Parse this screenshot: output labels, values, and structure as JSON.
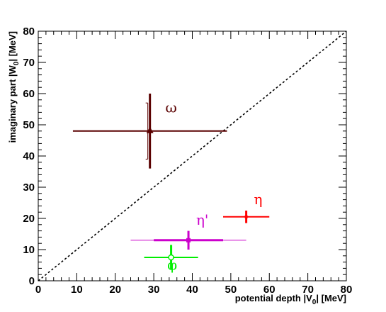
{
  "chart_data": {
    "type": "scatter",
    "xlabel": "potential depth |V",
    "xlabel_sub": "0",
    "xlabel_end": "| [MeV]",
    "ylabel": "imaginary part |W",
    "ylabel_sub": "0",
    "ylabel_end": "| [MeV]",
    "xlim": [
      0,
      80
    ],
    "ylim": [
      0,
      80
    ],
    "xticks": [
      "0",
      "10",
      "20",
      "30",
      "40",
      "50",
      "60",
      "70",
      "80"
    ],
    "yticks": [
      "0",
      "10",
      "20",
      "30",
      "40",
      "50",
      "60",
      "70",
      "80"
    ],
    "grid": false,
    "reference_line": {
      "style": "dashed",
      "from": [
        0,
        0
      ],
      "to": [
        80,
        80
      ]
    },
    "points": [
      {
        "name": "ω",
        "marker": "triangle",
        "color": "#5a0000",
        "x": 29,
        "y": 48,
        "xerr_lo": 20,
        "xerr_hi": 20,
        "yerr_lo": 12,
        "yerr_hi": 12,
        "yerr_inner": 9,
        "label_dx": 4,
        "label_dy": 6
      },
      {
        "name": "η",
        "marker": "cross",
        "color": "#ff0000",
        "x": 54,
        "y": 20.5,
        "xerr_lo": 6,
        "xerr_hi": 6,
        "yerr_lo": 2,
        "yerr_hi": 2,
        "yerr_inner": 0,
        "label_dx": 2,
        "label_dy": 4
      },
      {
        "name": "η'",
        "marker": "square",
        "color": "#cc00cc",
        "x": 39,
        "y": 13,
        "xerr_lo": 15,
        "xerr_hi": 15,
        "xerr_inner": 9,
        "yerr_lo": 3,
        "yerr_hi": 3,
        "yerr_inner": 0,
        "label_dx": 2,
        "label_dy": 5
      },
      {
        "name": "φ",
        "marker": "circle",
        "color": "#00ee00",
        "x": 34.5,
        "y": 7.5,
        "xerr_lo": 7,
        "xerr_hi": 7,
        "yerr_lo": 4,
        "yerr_hi": 4,
        "yerr_inner": 0,
        "label_dx": -1,
        "label_dy": -4
      }
    ]
  }
}
